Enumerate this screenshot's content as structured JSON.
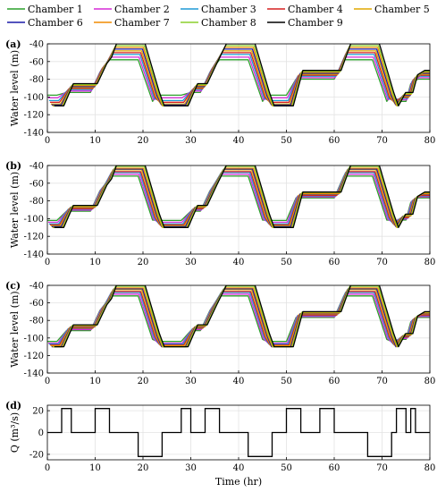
{
  "legend": {
    "entries": [
      {
        "label": "Chamber 1",
        "color": "#2ca02c"
      },
      {
        "label": "Chamber 2",
        "color": "#d62ad6"
      },
      {
        "label": "Chamber 3",
        "color": "#1f9ad6"
      },
      {
        "label": "Chamber 4",
        "color": "#d62020"
      },
      {
        "label": "Chamber 5",
        "color": "#e0a800"
      },
      {
        "label": "Chamber 6",
        "color": "#1a1aa8"
      },
      {
        "label": "Chamber 7",
        "color": "#f08c00"
      },
      {
        "label": "Chamber 8",
        "color": "#8ccf2c"
      },
      {
        "label": "Chamber 9",
        "color": "#000000"
      }
    ]
  },
  "chart_data": [
    {
      "panel": "(a)",
      "type": "line",
      "ylabel": "Water level (m)",
      "xlabel": "",
      "xlim": [
        0,
        80
      ],
      "ylim": [
        -140,
        -40
      ],
      "xticks": [
        0,
        10,
        20,
        30,
        40,
        50,
        60,
        70,
        80
      ],
      "yticks": [
        -40,
        -60,
        -80,
        -100,
        -120,
        -140
      ],
      "grid": true,
      "trajectory": {
        "x": [
          0,
          2,
          4,
          4.5,
          5,
          9,
          11,
          12,
          13,
          19,
          22,
          23,
          24,
          28,
          30,
          30.5,
          32,
          34,
          36,
          42,
          45,
          46,
          47,
          50,
          52,
          60,
          62,
          68,
          71,
          72,
          73.5,
          75,
          76,
          77.5,
          80
        ],
        "y": [
          -110,
          -110,
          -85,
          -85,
          -85,
          -85,
          -62,
          -55,
          -40,
          -40,
          -95,
          -110,
          -110,
          -110,
          -85,
          -85,
          -85,
          -62,
          -40,
          -40,
          -95,
          -110,
          -110,
          -110,
          -70,
          -70,
          -40,
          -40,
          -95,
          -110,
          -95,
          -95,
          -75,
          -70,
          -70
        ]
      },
      "spread": [
        -18,
        -15,
        -12,
        -10,
        -8,
        -6,
        -4,
        -2,
        0
      ],
      "low_dip": [
        -12,
        -9,
        -6,
        -4,
        -2,
        -1,
        0,
        0,
        0
      ]
    },
    {
      "panel": "(b)",
      "type": "line",
      "ylabel": "Water level (m)",
      "xlabel": "",
      "xlim": [
        0,
        80
      ],
      "ylim": [
        -140,
        -40
      ],
      "xticks": [
        0,
        10,
        20,
        30,
        40,
        50,
        60,
        70,
        80
      ],
      "yticks": [
        -40,
        -60,
        -80,
        -100,
        -120,
        -140
      ],
      "grid": true,
      "trajectory": {
        "x": [
          0,
          2,
          4,
          4.5,
          5,
          9,
          11,
          12,
          13,
          19,
          22,
          23,
          24,
          28,
          30,
          30.5,
          32,
          34,
          36,
          42,
          45,
          46,
          47,
          50,
          52,
          60,
          62,
          68,
          71,
          72,
          73.5,
          75,
          76,
          77.5,
          80
        ],
        "y": [
          -110,
          -110,
          -85,
          -85,
          -85,
          -85,
          -62,
          -55,
          -40,
          -40,
          -95,
          -110,
          -110,
          -110,
          -85,
          -85,
          -85,
          -62,
          -40,
          -40,
          -95,
          -110,
          -110,
          -110,
          -70,
          -70,
          -40,
          -40,
          -95,
          -110,
          -95,
          -95,
          -75,
          -70,
          -70
        ]
      },
      "spread": [
        -12,
        -10,
        -8,
        -7,
        -5,
        -4,
        -3,
        -1,
        0
      ],
      "low_dip": [
        -8,
        -6,
        -4,
        -3,
        -2,
        -1,
        0,
        0,
        0
      ]
    },
    {
      "panel": "(c)",
      "type": "line",
      "ylabel": "Water level (m)",
      "xlabel": "",
      "xlim": [
        0,
        80
      ],
      "ylim": [
        -140,
        -40
      ],
      "xticks": [
        0,
        10,
        20,
        30,
        40,
        50,
        60,
        70,
        80
      ],
      "yticks": [
        -40,
        -60,
        -80,
        -100,
        -120,
        -140
      ],
      "grid": true,
      "trajectory": {
        "x": [
          0,
          2,
          4,
          4.5,
          5,
          9,
          11,
          12,
          13,
          19,
          22,
          23,
          24,
          28,
          30,
          30.5,
          32,
          34,
          36,
          42,
          45,
          46,
          47,
          50,
          52,
          60,
          62,
          68,
          71,
          72,
          73.5,
          75,
          76,
          77.5,
          80
        ],
        "y": [
          -110,
          -110,
          -85,
          -85,
          -85,
          -85,
          -62,
          -55,
          -40,
          -40,
          -95,
          -110,
          -110,
          -110,
          -85,
          -85,
          -85,
          -62,
          -40,
          -40,
          -95,
          -110,
          -110,
          -110,
          -70,
          -70,
          -40,
          -40,
          -95,
          -110,
          -95,
          -95,
          -75,
          -70,
          -70
        ]
      },
      "spread": [
        -12,
        -10,
        -8,
        -7,
        -5,
        -4,
        -3,
        -1,
        0
      ],
      "low_dip": [
        -6,
        -4,
        -3,
        -2,
        -1,
        0,
        0,
        0,
        0
      ]
    },
    {
      "panel": "(d)",
      "type": "line",
      "ylabel": "Q (m³/s)",
      "xlabel": "Time (hr)",
      "xlim": [
        0,
        80
      ],
      "ylim": [
        -25,
        25
      ],
      "xticks": [
        0,
        10,
        20,
        30,
        40,
        50,
        60,
        70,
        80
      ],
      "yticks": [
        20,
        0,
        -20
      ],
      "grid": true,
      "series": [
        {
          "name": "",
          "x": [
            0,
            3,
            3,
            5,
            5,
            10,
            10,
            13,
            13,
            19,
            19,
            24,
            24,
            28,
            28,
            30,
            30,
            33,
            33,
            36,
            36,
            42,
            42,
            47,
            47,
            50,
            50,
            53,
            53,
            57,
            57,
            60,
            60,
            67,
            67,
            72,
            72,
            73,
            73,
            75,
            75,
            76,
            76,
            77,
            77,
            80
          ],
          "y": [
            0,
            0,
            22,
            22,
            0,
            0,
            22,
            22,
            0,
            0,
            -22,
            -22,
            0,
            0,
            22,
            22,
            0,
            0,
            22,
            22,
            0,
            0,
            -22,
            -22,
            0,
            0,
            22,
            22,
            0,
            0,
            22,
            22,
            0,
            0,
            -22,
            -22,
            0,
            0,
            22,
            22,
            0,
            0,
            22,
            22,
            0,
            0
          ]
        }
      ]
    }
  ]
}
